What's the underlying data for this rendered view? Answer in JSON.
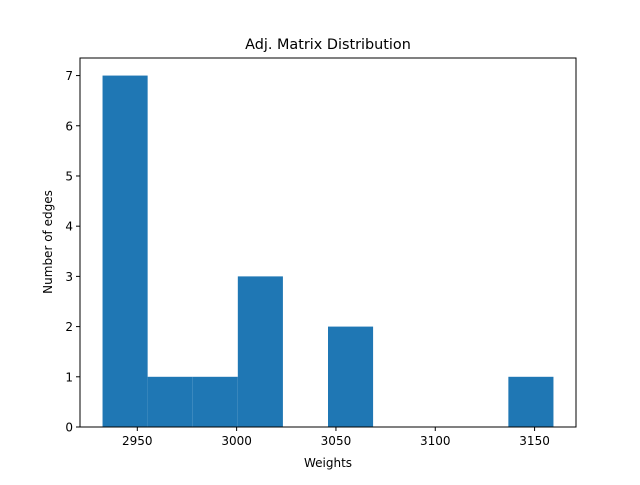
{
  "chart_data": {
    "type": "bar",
    "subtype": "histogram",
    "title": "Adj. Matrix Distribution",
    "xlabel": "Weights",
    "ylabel": "Number of edges",
    "bin_edges": [
      2932.5,
      2955.2,
      2977.9,
      3000.6,
      3023.3,
      3046.0,
      3068.7,
      3091.4,
      3114.1,
      3136.8,
      3159.5
    ],
    "values": [
      7,
      1,
      1,
      3,
      0,
      2,
      0,
      0,
      0,
      1
    ],
    "xlim": [
      2921.15,
      3170.85
    ],
    "ylim": [
      0,
      7.35
    ],
    "xticks": [
      2950,
      3000,
      3050,
      3100,
      3150
    ],
    "xtick_labels": [
      "2950",
      "3000",
      "3050",
      "3100",
      "3150"
    ],
    "yticks": [
      0,
      1,
      2,
      3,
      4,
      5,
      6,
      7
    ],
    "ytick_labels": [
      "0",
      "1",
      "2",
      "3",
      "4",
      "5",
      "6",
      "7"
    ],
    "bar_color": "#1f77b4",
    "grid": false,
    "legend": "none"
  }
}
